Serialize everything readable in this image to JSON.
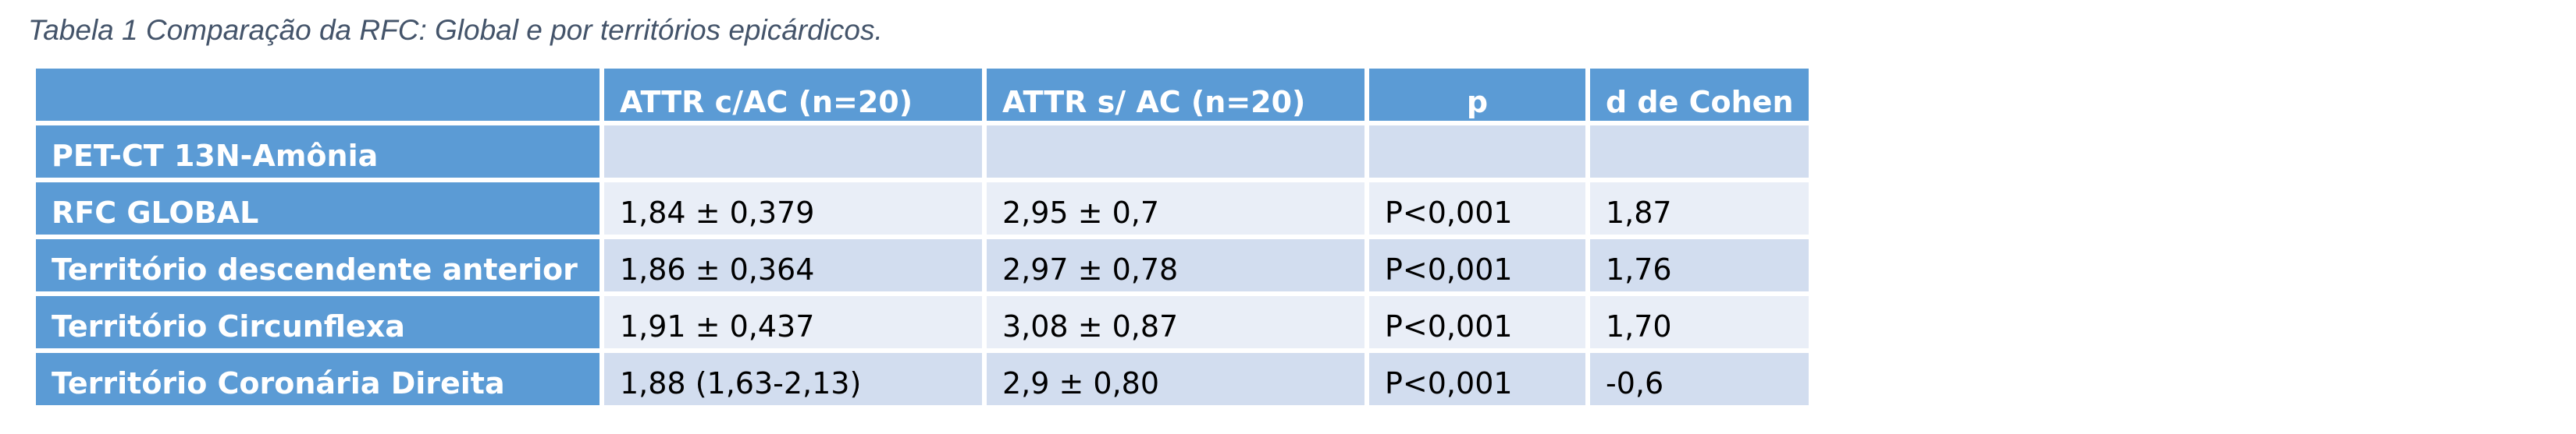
{
  "caption": "Tabela 1 Comparação da RFC: Global e por territórios epicárdicos.",
  "table": {
    "header": [
      "ATTR c/AC (n=20)",
      "ATTR s/ AC (n=20)",
      "p",
      "d de Cohen"
    ],
    "rows": [
      [
        "PET-CT 13N-Amônia"
      ],
      [
        "RFC GLOBAL",
        "1,84 ± 0,379",
        "2,95 ± 0,7",
        "P<0,001",
        "1,87"
      ],
      [
        "Território descendente anterior",
        "1,86 ± 0,364",
        "2,97 ± 0,78",
        "P<0,001",
        "1,76"
      ],
      [
        "Território Circunflexa",
        "1,91 ± 0,437",
        "3,08 ± 0,87",
        "P<0,001",
        "1,70"
      ],
      [
        "Território Coronária Direita",
        "1,88 (1,63-2,13)",
        "2,9 ± 0,80",
        "P<0,001",
        "-0,6"
      ]
    ]
  }
}
